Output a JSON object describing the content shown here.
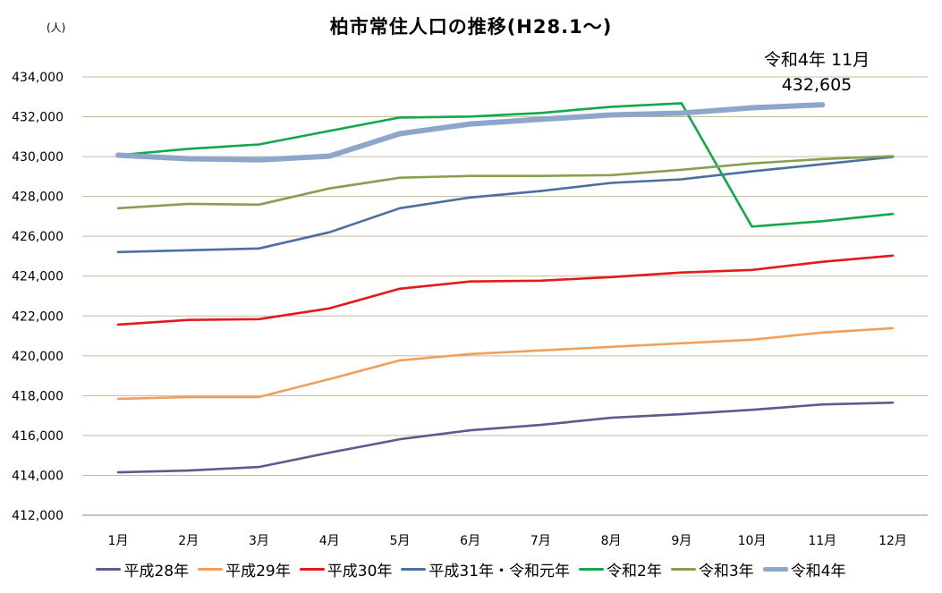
{
  "chart_data": {
    "type": "line",
    "title": "柏市常住人口の推移(H28.1～)",
    "unit_label": "(人)",
    "xlabel": "",
    "ylabel": "人",
    "ylim": [
      412000,
      434000
    ],
    "ytick_step": 2000,
    "yticks": [
      "412,000",
      "414,000",
      "416,000",
      "418,000",
      "420,000",
      "422,000",
      "424,000",
      "426,000",
      "428,000",
      "430,000",
      "432,000",
      "434,000"
    ],
    "categories": [
      "1月",
      "2月",
      "3月",
      "4月",
      "5月",
      "6月",
      "7月",
      "8月",
      "9月",
      "10月",
      "11月",
      "12月"
    ],
    "grid": true,
    "legend_position": "bottom",
    "annotation": {
      "line1": "令和4年 11月",
      "line2": "432,605",
      "series": "令和4年",
      "category": "11月",
      "value": 432605
    },
    "series": [
      {
        "name": "平成28年",
        "color": "#6a5490",
        "emphasis": false,
        "values": [
          414150,
          414240,
          414420,
          415140,
          415810,
          416260,
          416530,
          416890,
          417070,
          417290,
          417560,
          417650
        ]
      },
      {
        "name": "平成29年",
        "color": "#f0a05a",
        "emphasis": false,
        "values": [
          417840,
          417930,
          417930,
          418830,
          419770,
          420090,
          420270,
          420450,
          420630,
          420810,
          421170,
          421390
        ]
      },
      {
        "name": "平成30年",
        "color": "#e31a1c",
        "emphasis": false,
        "values": [
          421570,
          421800,
          421840,
          422380,
          423370,
          423730,
          423770,
          423950,
          424180,
          424310,
          424720,
          425030
        ]
      },
      {
        "name": "平成31年・令和元年",
        "color": "#4a6fa0",
        "emphasis": false,
        "values": [
          425210,
          425300,
          425390,
          426200,
          427410,
          427950,
          428270,
          428680,
          428860,
          429260,
          429620,
          429980
        ]
      },
      {
        "name": "令和2年",
        "color": "#13a84a",
        "emphasis": false,
        "values": [
          430070,
          430390,
          430610,
          431290,
          431960,
          432010,
          432190,
          432500,
          432680,
          426490,
          426760,
          427120
        ]
      },
      {
        "name": "令和3年",
        "color": "#86a050",
        "emphasis": false,
        "values": [
          427410,
          427630,
          427590,
          428400,
          428940,
          429030,
          429030,
          429070,
          429340,
          429660,
          429880,
          430020
        ]
      },
      {
        "name": "令和4年",
        "color": "#8fa6cc",
        "emphasis": true,
        "values": [
          430070,
          429890,
          429840,
          430020,
          431150,
          431640,
          431870,
          432090,
          432180,
          432450,
          432605,
          null
        ]
      }
    ]
  },
  "colors": {
    "gridline": "#c0bca0",
    "axis": "#888888"
  }
}
